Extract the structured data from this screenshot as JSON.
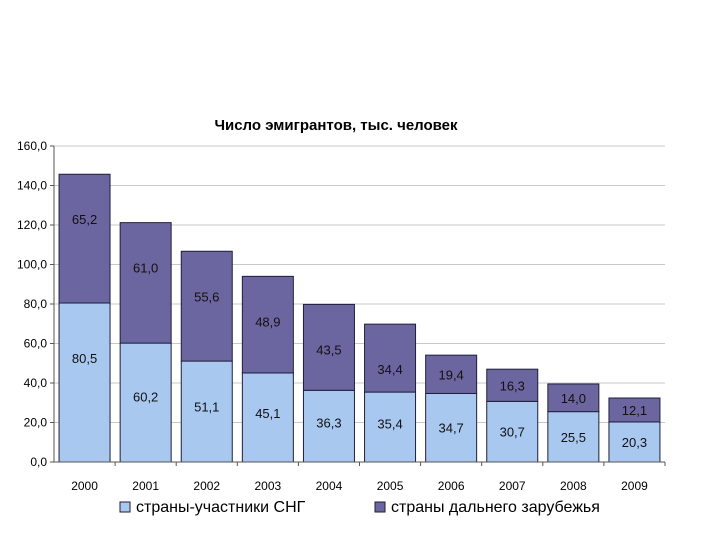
{
  "chart_data": {
    "type": "bar",
    "stacked": true,
    "title": "Число эмигрантов, тыс. человек",
    "categories": [
      "2000",
      "2001",
      "2002",
      "2003",
      "2004",
      "2005",
      "2006",
      "2007",
      "2008",
      "2009"
    ],
    "series": [
      {
        "name": "страны-участники СНГ",
        "color": "#a9c8f0",
        "values": [
          80.5,
          60.2,
          51.1,
          45.1,
          36.3,
          35.4,
          34.7,
          30.7,
          25.5,
          20.3
        ],
        "labels": [
          "80,5",
          "60,2",
          "51,1",
          "45,1",
          "36,3",
          "35,4",
          "34,7",
          "30,7",
          "25,5",
          "20,3"
        ]
      },
      {
        "name": "страны дальнего зарубежья",
        "color": "#6b66a0",
        "values": [
          65.2,
          61.0,
          55.6,
          48.9,
          43.5,
          34.4,
          19.4,
          16.3,
          14.0,
          12.1
        ],
        "labels": [
          "65,2",
          "61,0",
          "55,6",
          "48,9",
          "43,5",
          "34,4",
          "19,4",
          "16,3",
          "14,0",
          "12,1"
        ]
      }
    ],
    "ylim": [
      0,
      160
    ],
    "yticks": [
      0,
      20,
      40,
      60,
      80,
      100,
      120,
      140,
      160
    ],
    "ytick_labels": [
      "0,0",
      "20,0",
      "40,0",
      "60,0",
      "80,0",
      "100,0",
      "120,0",
      "140,0",
      "160,0"
    ],
    "grid": true,
    "legend_position": "bottom",
    "xlabel": "",
    "ylabel": ""
  }
}
